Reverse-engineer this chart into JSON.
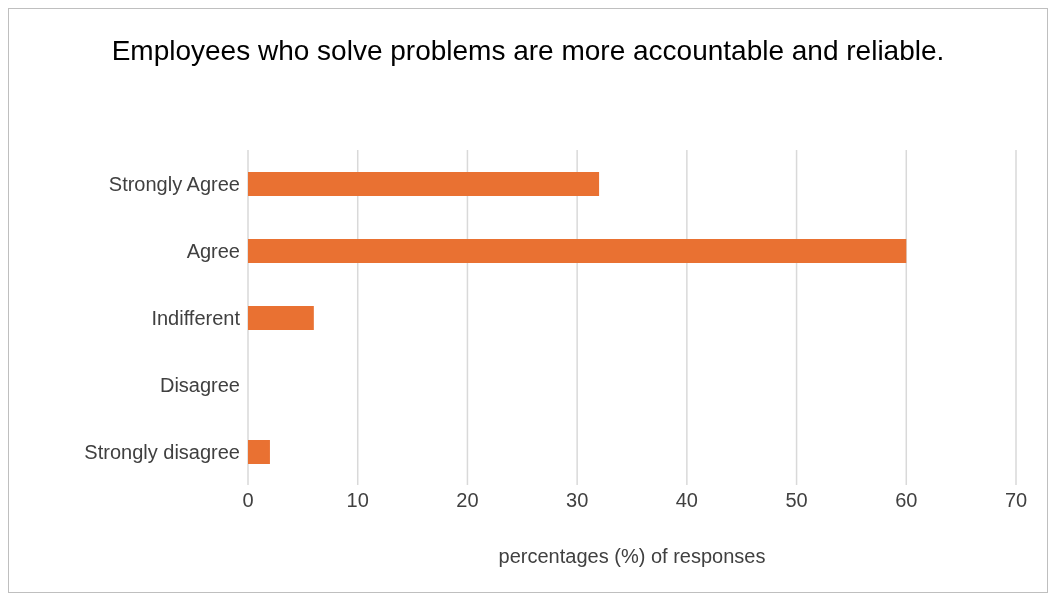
{
  "chart_data": {
    "type": "bar",
    "orientation": "horizontal",
    "title": "Employees who solve problems are more accountable and reliable.",
    "xlabel": "percentages  (%) of responses",
    "categories": [
      "Strongly Agree",
      "Agree",
      "Indifferent",
      "Disagree",
      "Strongly disagree"
    ],
    "values": [
      32,
      60,
      6,
      0,
      2
    ],
    "color": "#e97132",
    "xlim": [
      0,
      70
    ],
    "xticks": [
      0,
      10,
      20,
      30,
      40,
      50,
      60,
      70
    ],
    "grid": "x",
    "legend": false
  }
}
